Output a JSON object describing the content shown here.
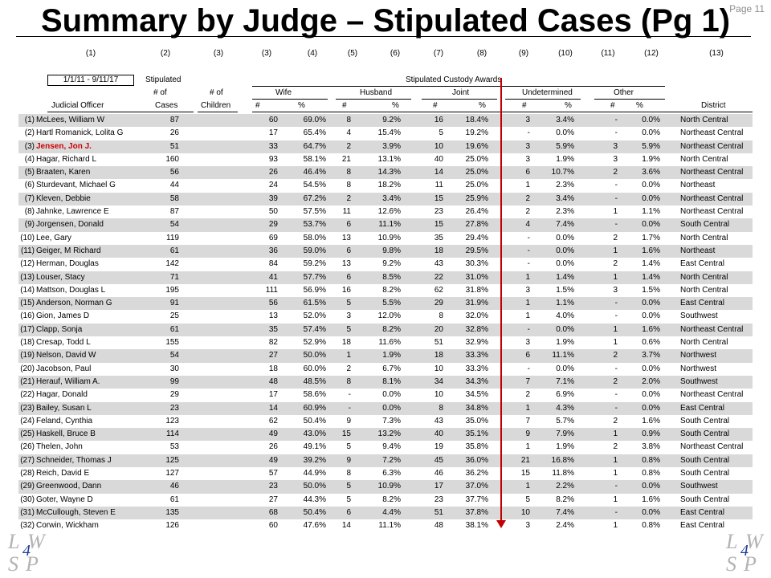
{
  "title": "Summary by Judge – Stipulated Cases (Pg 1)",
  "page_number": "Page 11",
  "column_numbers": [
    "(1)",
    "(2)",
    "(3)",
    "(3)",
    "(4)",
    "(5)",
    "(6)",
    "(7)",
    "(8)",
    "(9)",
    "(10)",
    "(11)",
    "(12)",
    "(13)"
  ],
  "date_range": "1/1/11 - 9/11/17",
  "headers": {
    "stipulated": "Stipulated",
    "num_of_1": "# of",
    "num_of_2": "# of",
    "cases": "Cases",
    "children": "Children",
    "judicial_officer": "Judicial Officer",
    "custody_awards": "Stipulated Custody Awards",
    "wife": "Wife",
    "husband": "Husband",
    "joint": "Joint",
    "undetermined": "Undetermined",
    "other": "Other",
    "district": "District",
    "num": "#",
    "pct": "%"
  },
  "rows": [
    {
      "idx": "(1)",
      "name": "McLees, William W",
      "cases": "87",
      "wife_n": "60",
      "wife_p": "69.0%",
      "hus_n": "8",
      "hus_p": "9.2%",
      "joint_n": "16",
      "joint_p": "18.4%",
      "und_n": "3",
      "und_p": "3.4%",
      "oth_n": "-",
      "oth_p": "0.0%",
      "district": "North Central"
    },
    {
      "idx": "(2)",
      "name": "Hartl Romanick, Lolita G",
      "cases": "26",
      "wife_n": "17",
      "wife_p": "65.4%",
      "hus_n": "4",
      "hus_p": "15.4%",
      "joint_n": "5",
      "joint_p": "19.2%",
      "und_n": "-",
      "und_p": "0.0%",
      "oth_n": "-",
      "oth_p": "0.0%",
      "district": "Northeast Central"
    },
    {
      "idx": "(3)",
      "name": "Jensen, Jon J.",
      "cases": "51",
      "wife_n": "33",
      "wife_p": "64.7%",
      "hus_n": "2",
      "hus_p": "3.9%",
      "joint_n": "10",
      "joint_p": "19.6%",
      "und_n": "3",
      "und_p": "5.9%",
      "oth_n": "3",
      "oth_p": "5.9%",
      "district": "Northeast Central",
      "highlight": true
    },
    {
      "idx": "(4)",
      "name": "Hagar, Richard L",
      "cases": "160",
      "wife_n": "93",
      "wife_p": "58.1%",
      "hus_n": "21",
      "hus_p": "13.1%",
      "joint_n": "40",
      "joint_p": "25.0%",
      "und_n": "3",
      "und_p": "1.9%",
      "oth_n": "3",
      "oth_p": "1.9%",
      "district": "North Central"
    },
    {
      "idx": "(5)",
      "name": "Braaten, Karen",
      "cases": "56",
      "wife_n": "26",
      "wife_p": "46.4%",
      "hus_n": "8",
      "hus_p": "14.3%",
      "joint_n": "14",
      "joint_p": "25.0%",
      "und_n": "6",
      "und_p": "10.7%",
      "oth_n": "2",
      "oth_p": "3.6%",
      "district": "Northeast Central"
    },
    {
      "idx": "(6)",
      "name": "Sturdevant, Michael G",
      "cases": "44",
      "wife_n": "24",
      "wife_p": "54.5%",
      "hus_n": "8",
      "hus_p": "18.2%",
      "joint_n": "11",
      "joint_p": "25.0%",
      "und_n": "1",
      "und_p": "2.3%",
      "oth_n": "-",
      "oth_p": "0.0%",
      "district": "Northeast"
    },
    {
      "idx": "(7)",
      "name": "Kleven, Debbie",
      "cases": "58",
      "wife_n": "39",
      "wife_p": "67.2%",
      "hus_n": "2",
      "hus_p": "3.4%",
      "joint_n": "15",
      "joint_p": "25.9%",
      "und_n": "2",
      "und_p": "3.4%",
      "oth_n": "-",
      "oth_p": "0.0%",
      "district": "Northeast Central"
    },
    {
      "idx": "(8)",
      "name": "Jahnke, Lawrence E",
      "cases": "87",
      "wife_n": "50",
      "wife_p": "57.5%",
      "hus_n": "11",
      "hus_p": "12.6%",
      "joint_n": "23",
      "joint_p": "26.4%",
      "und_n": "2",
      "und_p": "2.3%",
      "oth_n": "1",
      "oth_p": "1.1%",
      "district": "Northeast Central"
    },
    {
      "idx": "(9)",
      "name": "Jorgensen, Donald",
      "cases": "54",
      "wife_n": "29",
      "wife_p": "53.7%",
      "hus_n": "6",
      "hus_p": "11.1%",
      "joint_n": "15",
      "joint_p": "27.8%",
      "und_n": "4",
      "und_p": "7.4%",
      "oth_n": "-",
      "oth_p": "0.0%",
      "district": "South Central"
    },
    {
      "idx": "(10)",
      "name": "Lee, Gary",
      "cases": "119",
      "wife_n": "69",
      "wife_p": "58.0%",
      "hus_n": "13",
      "hus_p": "10.9%",
      "joint_n": "35",
      "joint_p": "29.4%",
      "und_n": "-",
      "und_p": "0.0%",
      "oth_n": "2",
      "oth_p": "1.7%",
      "district": "North Central"
    },
    {
      "idx": "(11)",
      "name": "Geiger, M Richard",
      "cases": "61",
      "wife_n": "36",
      "wife_p": "59.0%",
      "hus_n": "6",
      "hus_p": "9.8%",
      "joint_n": "18",
      "joint_p": "29.5%",
      "und_n": "-",
      "und_p": "0.0%",
      "oth_n": "1",
      "oth_p": "1.6%",
      "district": "Northeast"
    },
    {
      "idx": "(12)",
      "name": "Herman, Douglas",
      "cases": "142",
      "wife_n": "84",
      "wife_p": "59.2%",
      "hus_n": "13",
      "hus_p": "9.2%",
      "joint_n": "43",
      "joint_p": "30.3%",
      "und_n": "-",
      "und_p": "0.0%",
      "oth_n": "2",
      "oth_p": "1.4%",
      "district": "East Central"
    },
    {
      "idx": "(13)",
      "name": "Louser, Stacy",
      "cases": "71",
      "wife_n": "41",
      "wife_p": "57.7%",
      "hus_n": "6",
      "hus_p": "8.5%",
      "joint_n": "22",
      "joint_p": "31.0%",
      "und_n": "1",
      "und_p": "1.4%",
      "oth_n": "1",
      "oth_p": "1.4%",
      "district": "North Central"
    },
    {
      "idx": "(14)",
      "name": "Mattson, Douglas L",
      "cases": "195",
      "wife_n": "111",
      "wife_p": "56.9%",
      "hus_n": "16",
      "hus_p": "8.2%",
      "joint_n": "62",
      "joint_p": "31.8%",
      "und_n": "3",
      "und_p": "1.5%",
      "oth_n": "3",
      "oth_p": "1.5%",
      "district": "North Central"
    },
    {
      "idx": "(15)",
      "name": "Anderson, Norman G",
      "cases": "91",
      "wife_n": "56",
      "wife_p": "61.5%",
      "hus_n": "5",
      "hus_p": "5.5%",
      "joint_n": "29",
      "joint_p": "31.9%",
      "und_n": "1",
      "und_p": "1.1%",
      "oth_n": "-",
      "oth_p": "0.0%",
      "district": "East Central"
    },
    {
      "idx": "(16)",
      "name": "Gion, James D",
      "cases": "25",
      "wife_n": "13",
      "wife_p": "52.0%",
      "hus_n": "3",
      "hus_p": "12.0%",
      "joint_n": "8",
      "joint_p": "32.0%",
      "und_n": "1",
      "und_p": "4.0%",
      "oth_n": "-",
      "oth_p": "0.0%",
      "district": "Southwest"
    },
    {
      "idx": "(17)",
      "name": "Clapp, Sonja",
      "cases": "61",
      "wife_n": "35",
      "wife_p": "57.4%",
      "hus_n": "5",
      "hus_p": "8.2%",
      "joint_n": "20",
      "joint_p": "32.8%",
      "und_n": "-",
      "und_p": "0.0%",
      "oth_n": "1",
      "oth_p": "1.6%",
      "district": "Northeast Central"
    },
    {
      "idx": "(18)",
      "name": "Cresap, Todd L",
      "cases": "155",
      "wife_n": "82",
      "wife_p": "52.9%",
      "hus_n": "18",
      "hus_p": "11.6%",
      "joint_n": "51",
      "joint_p": "32.9%",
      "und_n": "3",
      "und_p": "1.9%",
      "oth_n": "1",
      "oth_p": "0.6%",
      "district": "North Central"
    },
    {
      "idx": "(19)",
      "name": "Nelson, David W",
      "cases": "54",
      "wife_n": "27",
      "wife_p": "50.0%",
      "hus_n": "1",
      "hus_p": "1.9%",
      "joint_n": "18",
      "joint_p": "33.3%",
      "und_n": "6",
      "und_p": "11.1%",
      "oth_n": "2",
      "oth_p": "3.7%",
      "district": "Northwest"
    },
    {
      "idx": "(20)",
      "name": "Jacobson, Paul",
      "cases": "30",
      "wife_n": "18",
      "wife_p": "60.0%",
      "hus_n": "2",
      "hus_p": "6.7%",
      "joint_n": "10",
      "joint_p": "33.3%",
      "und_n": "-",
      "und_p": "0.0%",
      "oth_n": "-",
      "oth_p": "0.0%",
      "district": "Northwest"
    },
    {
      "idx": "(21)",
      "name": "Herauf, William A.",
      "cases": "99",
      "wife_n": "48",
      "wife_p": "48.5%",
      "hus_n": "8",
      "hus_p": "8.1%",
      "joint_n": "34",
      "joint_p": "34.3%",
      "und_n": "7",
      "und_p": "7.1%",
      "oth_n": "2",
      "oth_p": "2.0%",
      "district": "Southwest"
    },
    {
      "idx": "(22)",
      "name": "Hagar, Donald",
      "cases": "29",
      "wife_n": "17",
      "wife_p": "58.6%",
      "hus_n": "-",
      "hus_p": "0.0%",
      "joint_n": "10",
      "joint_p": "34.5%",
      "und_n": "2",
      "und_p": "6.9%",
      "oth_n": "-",
      "oth_p": "0.0%",
      "district": "Northeast Central"
    },
    {
      "idx": "(23)",
      "name": "Bailey, Susan L",
      "cases": "23",
      "wife_n": "14",
      "wife_p": "60.9%",
      "hus_n": "-",
      "hus_p": "0.0%",
      "joint_n": "8",
      "joint_p": "34.8%",
      "und_n": "1",
      "und_p": "4.3%",
      "oth_n": "-",
      "oth_p": "0.0%",
      "district": "East Central"
    },
    {
      "idx": "(24)",
      "name": "Feland, Cynthia",
      "cases": "123",
      "wife_n": "62",
      "wife_p": "50.4%",
      "hus_n": "9",
      "hus_p": "7.3%",
      "joint_n": "43",
      "joint_p": "35.0%",
      "und_n": "7",
      "und_p": "5.7%",
      "oth_n": "2",
      "oth_p": "1.6%",
      "district": "South Central"
    },
    {
      "idx": "(25)",
      "name": "Haskell, Bruce B",
      "cases": "114",
      "wife_n": "49",
      "wife_p": "43.0%",
      "hus_n": "15",
      "hus_p": "13.2%",
      "joint_n": "40",
      "joint_p": "35.1%",
      "und_n": "9",
      "und_p": "7.9%",
      "oth_n": "1",
      "oth_p": "0.9%",
      "district": "South Central"
    },
    {
      "idx": "(26)",
      "name": "Thelen, John",
      "cases": "53",
      "wife_n": "26",
      "wife_p": "49.1%",
      "hus_n": "5",
      "hus_p": "9.4%",
      "joint_n": "19",
      "joint_p": "35.8%",
      "und_n": "1",
      "und_p": "1.9%",
      "oth_n": "2",
      "oth_p": "3.8%",
      "district": "Northeast Central"
    },
    {
      "idx": "(27)",
      "name": "Schneider, Thomas J",
      "cases": "125",
      "wife_n": "49",
      "wife_p": "39.2%",
      "hus_n": "9",
      "hus_p": "7.2%",
      "joint_n": "45",
      "joint_p": "36.0%",
      "und_n": "21",
      "und_p": "16.8%",
      "oth_n": "1",
      "oth_p": "0.8%",
      "district": "South Central"
    },
    {
      "idx": "(28)",
      "name": "Reich, David E",
      "cases": "127",
      "wife_n": "57",
      "wife_p": "44.9%",
      "hus_n": "8",
      "hus_p": "6.3%",
      "joint_n": "46",
      "joint_p": "36.2%",
      "und_n": "15",
      "und_p": "11.8%",
      "oth_n": "1",
      "oth_p": "0.8%",
      "district": "South Central"
    },
    {
      "idx": "(29)",
      "name": "Greenwood, Dann",
      "cases": "46",
      "wife_n": "23",
      "wife_p": "50.0%",
      "hus_n": "5",
      "hus_p": "10.9%",
      "joint_n": "17",
      "joint_p": "37.0%",
      "und_n": "1",
      "und_p": "2.2%",
      "oth_n": "-",
      "oth_p": "0.0%",
      "district": "Southwest"
    },
    {
      "idx": "(30)",
      "name": "Goter, Wayne D",
      "cases": "61",
      "wife_n": "27",
      "wife_p": "44.3%",
      "hus_n": "5",
      "hus_p": "8.2%",
      "joint_n": "23",
      "joint_p": "37.7%",
      "und_n": "5",
      "und_p": "8.2%",
      "oth_n": "1",
      "oth_p": "1.6%",
      "district": "South Central"
    },
    {
      "idx": "(31)",
      "name": "McCullough, Steven E",
      "cases": "135",
      "wife_n": "68",
      "wife_p": "50.4%",
      "hus_n": "6",
      "hus_p": "4.4%",
      "joint_n": "51",
      "joint_p": "37.8%",
      "und_n": "10",
      "und_p": "7.4%",
      "oth_n": "-",
      "oth_p": "0.0%",
      "district": "East Central"
    },
    {
      "idx": "(32)",
      "name": "Corwin, Wickham",
      "cases": "126",
      "wife_n": "60",
      "wife_p": "47.6%",
      "hus_n": "14",
      "hus_p": "11.1%",
      "joint_n": "48",
      "joint_p": "38.1%",
      "und_n": "3",
      "und_p": "2.4%",
      "oth_n": "1",
      "oth_p": "0.8%",
      "district": "East Central"
    }
  ],
  "logo": {
    "l": "L",
    "w": "W",
    "s": "S",
    "p": "P",
    "four": "4"
  },
  "colors": {
    "highlight_text": "#d00000",
    "row_shade": "#d9d9d9",
    "marker_line": "#c00000",
    "logo_letters": "#b3b3b3",
    "logo_four": "#1f3a93"
  }
}
